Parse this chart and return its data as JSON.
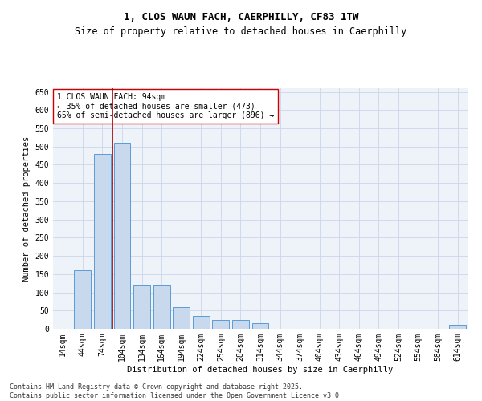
{
  "title_line1": "1, CLOS WAUN FACH, CAERPHILLY, CF83 1TW",
  "title_line2": "Size of property relative to detached houses in Caerphilly",
  "xlabel": "Distribution of detached houses by size in Caerphilly",
  "ylabel": "Number of detached properties",
  "categories": [
    "14sqm",
    "44sqm",
    "74sqm",
    "104sqm",
    "134sqm",
    "164sqm",
    "194sqm",
    "224sqm",
    "254sqm",
    "284sqm",
    "314sqm",
    "344sqm",
    "374sqm",
    "404sqm",
    "434sqm",
    "464sqm",
    "494sqm",
    "524sqm",
    "554sqm",
    "584sqm",
    "614sqm"
  ],
  "values": [
    0,
    160,
    480,
    510,
    120,
    120,
    60,
    35,
    25,
    25,
    15,
    0,
    0,
    0,
    0,
    0,
    0,
    0,
    0,
    0,
    10
  ],
  "bar_color": "#c9d9ed",
  "bar_edge_color": "#5b9bd5",
  "vline_x_idx": 2.5,
  "vline_color": "#aa0000",
  "annotation_text": "1 CLOS WAUN FACH: 94sqm\n← 35% of detached houses are smaller (473)\n65% of semi-detached houses are larger (896) →",
  "annotation_box_color": "#ffffff",
  "annotation_box_edge": "#cc0000",
  "ylim": [
    0,
    660
  ],
  "yticks": [
    0,
    50,
    100,
    150,
    200,
    250,
    300,
    350,
    400,
    450,
    500,
    550,
    600,
    650
  ],
  "grid_color": "#ccd6e8",
  "bg_color": "#eef2f9",
  "footer_line1": "Contains HM Land Registry data © Crown copyright and database right 2025.",
  "footer_line2": "Contains public sector information licensed under the Open Government Licence v3.0.",
  "title_fontsize": 9,
  "subtitle_fontsize": 8.5,
  "axis_label_fontsize": 7.5,
  "tick_fontsize": 7,
  "annotation_fontsize": 7,
  "footer_fontsize": 6
}
